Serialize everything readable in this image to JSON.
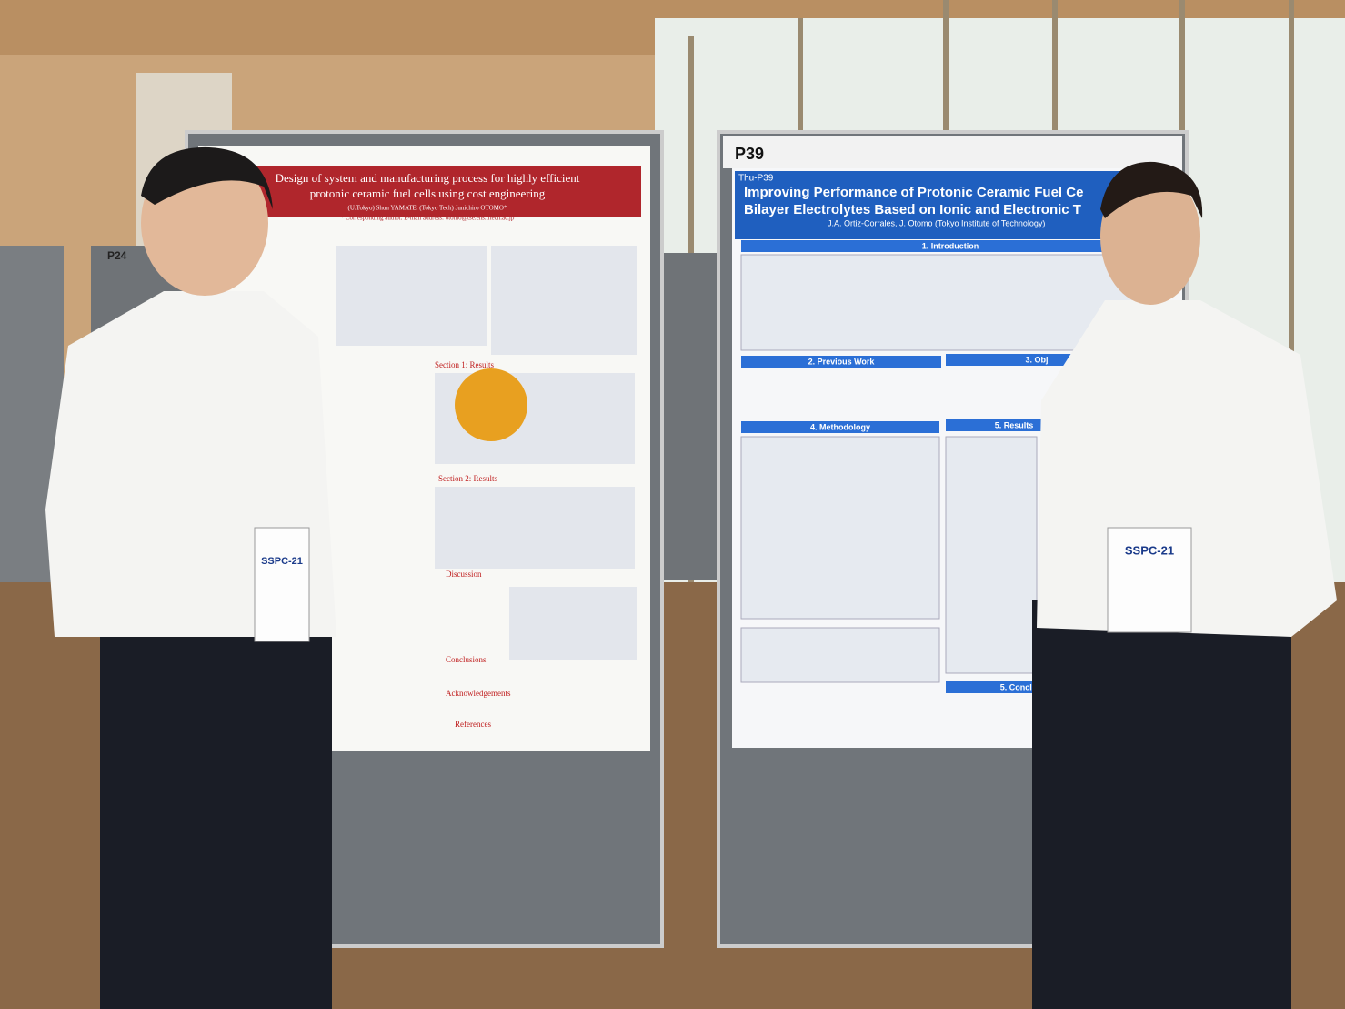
{
  "side_board": {
    "label": "P24"
  },
  "left_poster": {
    "title_line1": "Design of system and manufacturing process for highly efficient",
    "title_line2": "protonic ceramic fuel cells using cost engineering",
    "authors": "(U.Tokyo) Shun YAMATE, (Tokyo Tech) Junichiro OTOMO*",
    "contact": "* Corresponding author. E-mail address: otomo@tse.ens.titech.ac.jp",
    "sections": [
      "Section 1: Results",
      "Section 2: Results",
      "Discussion",
      "Conclusions",
      "Acknowledgements",
      "References"
    ]
  },
  "right_poster": {
    "board_label": "P39",
    "tag": "Thu-P39",
    "title_line1": "Improving Performance of Protonic Ceramic Fuel Ce",
    "title_line2": "Bilayer Electrolytes Based on Ionic and Electronic T",
    "authors": "J.A. Ortiz-Corrales, J. Otomo (Tokyo Institute of Technology)",
    "sections": [
      "1. Introduction",
      "2. Previous Work",
      "3. Obj",
      "4. Methodology",
      "5. Results",
      "5. Conclu"
    ]
  },
  "badges": [
    "SSPC-21",
    "SSPC-21"
  ]
}
